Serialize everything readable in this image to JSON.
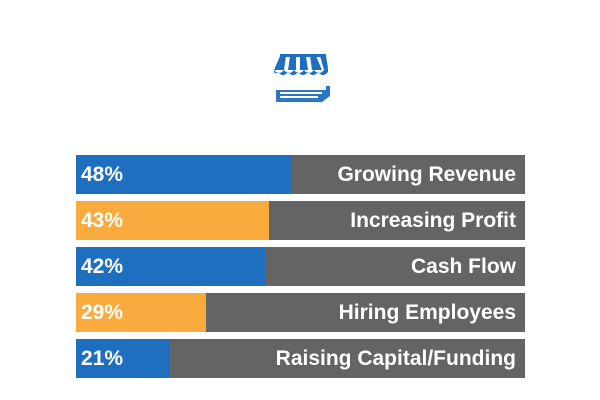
{
  "icon": {
    "name": "storefront-icon",
    "color": "#1f6fc0"
  },
  "colors": {
    "blue": "#1f6fc0",
    "orange": "#f9ac3d",
    "track": "#646464",
    "text": "#ffffff"
  },
  "chart_data": {
    "type": "bar",
    "orientation": "horizontal",
    "title": "",
    "xlabel": "",
    "ylabel": "",
    "xlim": [
      0,
      100
    ],
    "grid": false,
    "categories": [
      "Growing Revenue",
      "Increasing Profit",
      "Cash Flow",
      "Hiring Employees",
      "Raising Capital/Funding"
    ],
    "values": [
      48,
      43,
      42,
      29,
      21
    ],
    "value_labels": [
      "48%",
      "43%",
      "42%",
      "29%",
      "21%"
    ],
    "bar_colors": [
      "#1f6fc0",
      "#f9ac3d",
      "#1f6fc0",
      "#f9ac3d",
      "#1f6fc0"
    ]
  }
}
